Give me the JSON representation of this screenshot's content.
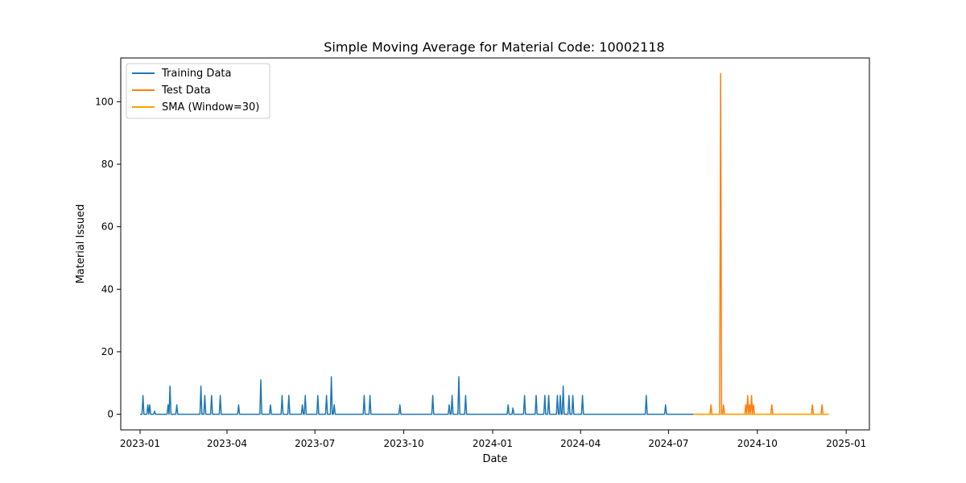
{
  "chart_data": {
    "type": "line",
    "title": "Simple Moving Average for Material Code: 10002118",
    "xlabel": "Date",
    "ylabel": "Material Issued",
    "x_ticks": [
      "2023-01",
      "2023-04",
      "2023-07",
      "2023-10",
      "2024-01",
      "2024-04",
      "2024-07",
      "2024-10",
      "2025-01"
    ],
    "y_ticks": [
      0,
      20,
      40,
      60,
      80,
      100
    ],
    "ylim": [
      -5,
      114
    ],
    "xlim": [
      "2022-12-12",
      "2025-01-25"
    ],
    "grid": false,
    "legend_position": "top-left",
    "series": [
      {
        "name": "Training Data",
        "color": "#1f77b4",
        "start": "2023-01-01",
        "end": "2024-07-27",
        "baseline": 0,
        "spikes": [
          [
            "2023-01-04",
            6
          ],
          [
            "2023-01-09",
            3
          ],
          [
            "2023-01-11",
            3
          ],
          [
            "2023-01-16",
            1
          ],
          [
            "2023-01-30",
            3
          ],
          [
            "2023-02-01",
            9
          ],
          [
            "2023-02-08",
            3
          ],
          [
            "2023-03-05",
            9
          ],
          [
            "2023-03-09",
            6
          ],
          [
            "2023-03-16",
            6
          ],
          [
            "2023-03-25",
            6
          ],
          [
            "2023-04-13",
            3
          ],
          [
            "2023-05-06",
            11
          ],
          [
            "2023-05-16",
            3
          ],
          [
            "2023-05-28",
            6
          ],
          [
            "2023-06-04",
            6
          ],
          [
            "2023-06-18",
            3
          ],
          [
            "2023-06-21",
            6
          ],
          [
            "2023-07-04",
            6
          ],
          [
            "2023-07-13",
            6
          ],
          [
            "2023-07-18",
            12
          ],
          [
            "2023-07-21",
            3
          ],
          [
            "2023-08-21",
            6
          ],
          [
            "2023-08-27",
            6
          ],
          [
            "2023-09-27",
            3
          ],
          [
            "2023-10-31",
            6
          ],
          [
            "2023-11-17",
            3
          ],
          [
            "2023-11-20",
            6
          ],
          [
            "2023-11-27",
            12
          ],
          [
            "2023-12-04",
            6
          ],
          [
            "2024-01-17",
            3
          ],
          [
            "2024-01-22",
            2
          ],
          [
            "2024-02-03",
            6
          ],
          [
            "2024-02-15",
            6
          ],
          [
            "2024-02-24",
            6
          ],
          [
            "2024-02-28",
            6
          ],
          [
            "2024-03-08",
            6
          ],
          [
            "2024-03-11",
            6
          ],
          [
            "2024-03-14",
            9
          ],
          [
            "2024-03-20",
            6
          ],
          [
            "2024-03-24",
            6
          ],
          [
            "2024-04-03",
            6
          ],
          [
            "2024-06-08",
            6
          ],
          [
            "2024-06-28",
            3
          ]
        ]
      },
      {
        "name": "Test Data",
        "color": "#ff7f0e",
        "start": "2024-07-27",
        "end": "2024-12-14",
        "baseline": 0,
        "spikes": [
          [
            "2024-08-14",
            3
          ],
          [
            "2024-08-24",
            109
          ],
          [
            "2024-08-27",
            3
          ],
          [
            "2024-09-19",
            3
          ],
          [
            "2024-09-21",
            6
          ],
          [
            "2024-09-23",
            3
          ],
          [
            "2024-09-25",
            6
          ],
          [
            "2024-09-27",
            3
          ],
          [
            "2024-10-16",
            3
          ],
          [
            "2024-11-27",
            3
          ],
          [
            "2024-12-07",
            3
          ]
        ]
      },
      {
        "name": "SMA (Window=30)",
        "color": "#ffa500",
        "start": "2024-07-27",
        "end": "2024-12-14",
        "baseline": 0,
        "spikes": []
      }
    ]
  }
}
